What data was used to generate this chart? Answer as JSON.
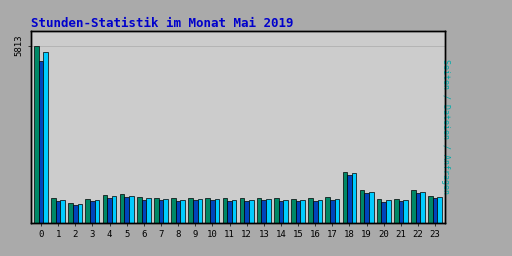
{
  "title": "Stunden-Statistik im Monat Mai 2019",
  "title_color": "#0000cc",
  "ylabel": "Seiten / Dateien / Anfragen",
  "ylabel_color": "#00aaaa",
  "hours": [
    0,
    1,
    2,
    3,
    4,
    5,
    6,
    7,
    8,
    9,
    10,
    11,
    12,
    13,
    14,
    15,
    16,
    17,
    18,
    19,
    20,
    21,
    22,
    23
  ],
  "seiten": [
    5600,
    740,
    620,
    740,
    870,
    880,
    810,
    770,
    760,
    770,
    780,
    760,
    760,
    770,
    760,
    750,
    760,
    790,
    1620,
    1020,
    730,
    750,
    1020,
    840
  ],
  "dateien": [
    5300,
    700,
    580,
    700,
    820,
    830,
    760,
    730,
    720,
    730,
    740,
    710,
    720,
    730,
    710,
    710,
    710,
    740,
    1560,
    960,
    690,
    710,
    960,
    800
  ],
  "anfragen": [
    5813,
    800,
    650,
    790,
    920,
    930,
    850,
    810,
    800,
    810,
    820,
    800,
    800,
    810,
    800,
    790,
    800,
    830,
    1680,
    1070,
    770,
    790,
    1070,
    880
  ],
  "color_seiten": "#00ccff",
  "color_dateien": "#0044bb",
  "color_anfragen": "#008866",
  "bg_color": "#aaaaaa",
  "plot_bg_color": "#cccccc",
  "bar_width": 0.27,
  "ylim_max": 6300,
  "ytick_val": 5813,
  "ytick_label": "5813",
  "border_color": "#000000"
}
